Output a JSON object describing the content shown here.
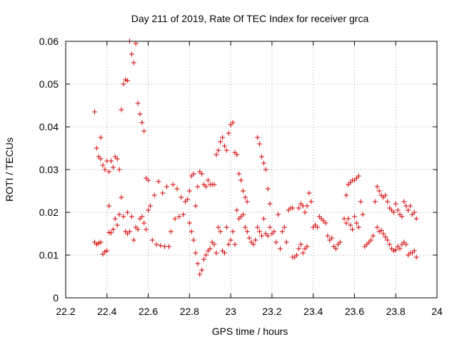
{
  "chart_data": {
    "type": "scatter",
    "title": "Day 211 of 2019, Rate Of TEC Index for receiver grca",
    "xlabel": "GPS time / hours",
    "ylabel": "ROTI / TECUs",
    "xlim": [
      22.2,
      24.0
    ],
    "ylim": [
      0,
      0.06
    ],
    "x_ticks": [
      "22.2",
      "22.4",
      "22.6",
      "22.8",
      "23",
      "23.2",
      "23.4",
      "23.6",
      "23.8",
      "24"
    ],
    "y_ticks": [
      "0",
      "0.01",
      "0.02",
      "0.03",
      "0.04",
      "0.05",
      "0.06"
    ],
    "grid": true,
    "marker": "plus",
    "color": "#d40000",
    "points": [
      [
        22.34,
        0.0435
      ],
      [
        22.35,
        0.035
      ],
      [
        22.36,
        0.033
      ],
      [
        22.37,
        0.0375
      ],
      [
        22.38,
        0.031
      ],
      [
        22.37,
        0.0325
      ],
      [
        22.39,
        0.03
      ],
      [
        22.4,
        0.032
      ],
      [
        22.41,
        0.0295
      ],
      [
        22.42,
        0.032
      ],
      [
        22.43,
        0.0305
      ],
      [
        22.44,
        0.033
      ],
      [
        22.45,
        0.0325
      ],
      [
        22.46,
        0.03
      ],
      [
        22.41,
        0.0215
      ],
      [
        22.34,
        0.013
      ],
      [
        22.35,
        0.0125
      ],
      [
        22.36,
        0.0128
      ],
      [
        22.37,
        0.013
      ],
      [
        22.38,
        0.0102
      ],
      [
        22.39,
        0.0108
      ],
      [
        22.4,
        0.011
      ],
      [
        22.41,
        0.0153
      ],
      [
        22.42,
        0.0152
      ],
      [
        22.43,
        0.016
      ],
      [
        22.44,
        0.0185
      ],
      [
        22.45,
        0.017
      ],
      [
        22.46,
        0.0195
      ],
      [
        22.47,
        0.0235
      ],
      [
        22.48,
        0.019
      ],
      [
        22.49,
        0.0155
      ],
      [
        22.5,
        0.015
      ],
      [
        22.5,
        0.02
      ],
      [
        22.51,
        0.0155
      ],
      [
        22.52,
        0.019
      ],
      [
        22.53,
        0.0135
      ],
      [
        22.54,
        0.0165
      ],
      [
        22.47,
        0.044
      ],
      [
        22.48,
        0.05
      ],
      [
        22.49,
        0.051
      ],
      [
        22.5,
        0.0508
      ],
      [
        22.51,
        0.06
      ],
      [
        22.52,
        0.057
      ],
      [
        22.53,
        0.055
      ],
      [
        22.54,
        0.0595
      ],
      [
        22.55,
        0.0455
      ],
      [
        22.56,
        0.043
      ],
      [
        22.57,
        0.041
      ],
      [
        22.58,
        0.039
      ],
      [
        22.59,
        0.028
      ],
      [
        22.6,
        0.0275
      ],
      [
        22.55,
        0.016
      ],
      [
        22.56,
        0.0185
      ],
      [
        22.57,
        0.019
      ],
      [
        22.58,
        0.0175
      ],
      [
        22.59,
        0.016
      ],
      [
        22.6,
        0.0205
      ],
      [
        22.61,
        0.0215
      ],
      [
        22.62,
        0.0135
      ],
      [
        22.63,
        0.024
      ],
      [
        22.64,
        0.0125
      ],
      [
        22.65,
        0.0272
      ],
      [
        22.66,
        0.0122
      ],
      [
        22.67,
        0.0245
      ],
      [
        22.68,
        0.012
      ],
      [
        22.69,
        0.026
      ],
      [
        22.7,
        0.012
      ],
      [
        22.71,
        0.0155
      ],
      [
        22.72,
        0.0265
      ],
      [
        22.73,
        0.0185
      ],
      [
        22.74,
        0.0255
      ],
      [
        22.75,
        0.019
      ],
      [
        22.76,
        0.0235
      ],
      [
        22.77,
        0.0195
      ],
      [
        22.78,
        0.0225
      ],
      [
        22.79,
        0.023
      ],
      [
        22.8,
        0.0175
      ],
      [
        22.81,
        0.0155
      ],
      [
        22.82,
        0.0135
      ],
      [
        22.83,
        0.0105
      ],
      [
        22.84,
        0.008
      ],
      [
        22.85,
        0.0055
      ],
      [
        22.86,
        0.0065
      ],
      [
        22.87,
        0.009
      ],
      [
        22.88,
        0.01
      ],
      [
        22.89,
        0.011
      ],
      [
        22.9,
        0.0115
      ],
      [
        22.91,
        0.013
      ],
      [
        22.92,
        0.0125
      ],
      [
        22.8,
        0.025
      ],
      [
        22.81,
        0.0285
      ],
      [
        22.82,
        0.029
      ],
      [
        22.83,
        0.0215
      ],
      [
        22.84,
        0.026
      ],
      [
        22.85,
        0.0295
      ],
      [
        22.86,
        0.029
      ],
      [
        22.87,
        0.0265
      ],
      [
        22.88,
        0.026
      ],
      [
        22.89,
        0.0275
      ],
      [
        22.9,
        0.0265
      ],
      [
        22.91,
        0.0265
      ],
      [
        22.92,
        0.0265
      ],
      [
        22.93,
        0.0335
      ],
      [
        22.94,
        0.0345
      ],
      [
        22.95,
        0.0365
      ],
      [
        22.96,
        0.0375
      ],
      [
        22.97,
        0.0355
      ],
      [
        22.98,
        0.0345
      ],
      [
        22.99,
        0.0385
      ],
      [
        23.0,
        0.0405
      ],
      [
        23.01,
        0.041
      ],
      [
        23.02,
        0.034
      ],
      [
        23.03,
        0.0335
      ],
      [
        23.04,
        0.029
      ],
      [
        23.05,
        0.0275
      ],
      [
        23.06,
        0.025
      ],
      [
        23.07,
        0.0235
      ],
      [
        23.08,
        0.0225
      ],
      [
        22.93,
        0.0105
      ],
      [
        22.94,
        0.0165
      ],
      [
        22.95,
        0.0155
      ],
      [
        22.96,
        0.011
      ],
      [
        22.97,
        0.0105
      ],
      [
        22.98,
        0.0165
      ],
      [
        22.99,
        0.0125
      ],
      [
        23.0,
        0.0135
      ],
      [
        23.01,
        0.0155
      ],
      [
        23.02,
        0.0125
      ],
      [
        23.03,
        0.0205
      ],
      [
        23.04,
        0.0185
      ],
      [
        23.05,
        0.019
      ],
      [
        23.06,
        0.0195
      ],
      [
        23.07,
        0.0165
      ],
      [
        23.08,
        0.0155
      ],
      [
        23.09,
        0.014
      ],
      [
        23.1,
        0.013
      ],
      [
        23.11,
        0.0125
      ],
      [
        23.12,
        0.0135
      ],
      [
        23.13,
        0.0375
      ],
      [
        23.14,
        0.036
      ],
      [
        23.15,
        0.033
      ],
      [
        23.16,
        0.0315
      ],
      [
        23.17,
        0.03
      ],
      [
        23.18,
        0.0255
      ],
      [
        23.19,
        0.022
      ],
      [
        23.13,
        0.0165
      ],
      [
        23.14,
        0.0155
      ],
      [
        23.15,
        0.0145
      ],
      [
        23.16,
        0.0185
      ],
      [
        23.17,
        0.015
      ],
      [
        23.18,
        0.0145
      ],
      [
        23.19,
        0.0165
      ],
      [
        23.2,
        0.015
      ],
      [
        23.21,
        0.0155
      ],
      [
        23.22,
        0.013
      ],
      [
        23.23,
        0.0195
      ],
      [
        23.24,
        0.0115
      ],
      [
        23.25,
        0.0155
      ],
      [
        23.26,
        0.0165
      ],
      [
        23.27,
        0.013
      ],
      [
        23.28,
        0.0205
      ],
      [
        23.29,
        0.021
      ],
      [
        23.3,
        0.021
      ],
      [
        23.3,
        0.0095
      ],
      [
        23.31,
        0.0095
      ],
      [
        23.32,
        0.01
      ],
      [
        23.33,
        0.0115
      ],
      [
        23.34,
        0.0125
      ],
      [
        23.35,
        0.0105
      ],
      [
        23.36,
        0.0115
      ],
      [
        23.37,
        0.012
      ],
      [
        23.33,
        0.021
      ],
      [
        23.34,
        0.022
      ],
      [
        23.35,
        0.0215
      ],
      [
        23.36,
        0.02
      ],
      [
        23.37,
        0.0215
      ],
      [
        23.38,
        0.0245
      ],
      [
        23.39,
        0.0225
      ],
      [
        23.4,
        0.0165
      ],
      [
        23.41,
        0.017
      ],
      [
        23.42,
        0.0165
      ],
      [
        23.43,
        0.019
      ],
      [
        23.44,
        0.0185
      ],
      [
        23.45,
        0.018
      ],
      [
        23.46,
        0.0175
      ],
      [
        23.47,
        0.0145
      ],
      [
        23.48,
        0.0135
      ],
      [
        23.49,
        0.014
      ],
      [
        23.5,
        0.012
      ],
      [
        23.51,
        0.0115
      ],
      [
        23.52,
        0.0125
      ],
      [
        23.53,
        0.013
      ],
      [
        23.55,
        0.0185
      ],
      [
        23.56,
        0.024
      ],
      [
        23.57,
        0.0265
      ],
      [
        23.58,
        0.027
      ],
      [
        23.59,
        0.0275
      ],
      [
        23.6,
        0.0275
      ],
      [
        23.61,
        0.028
      ],
      [
        23.62,
        0.0285
      ],
      [
        23.56,
        0.0175
      ],
      [
        23.57,
        0.0185
      ],
      [
        23.58,
        0.017
      ],
      [
        23.59,
        0.016
      ],
      [
        23.6,
        0.019
      ],
      [
        23.61,
        0.0175
      ],
      [
        23.62,
        0.0165
      ],
      [
        23.63,
        0.0225
      ],
      [
        23.64,
        0.0195
      ],
      [
        23.65,
        0.012
      ],
      [
        23.66,
        0.0125
      ],
      [
        23.67,
        0.013
      ],
      [
        23.68,
        0.0135
      ],
      [
        23.69,
        0.0145
      ],
      [
        23.7,
        0.0225
      ],
      [
        23.71,
        0.026
      ],
      [
        23.72,
        0.025
      ],
      [
        23.73,
        0.024
      ],
      [
        23.74,
        0.0235
      ],
      [
        23.75,
        0.024
      ],
      [
        23.76,
        0.0225
      ],
      [
        23.77,
        0.021
      ],
      [
        23.78,
        0.0205
      ],
      [
        23.79,
        0.02
      ],
      [
        23.8,
        0.022
      ],
      [
        23.81,
        0.0205
      ],
      [
        23.82,
        0.0195
      ],
      [
        23.83,
        0.019
      ],
      [
        23.84,
        0.0225
      ],
      [
        23.85,
        0.0215
      ],
      [
        23.86,
        0.0205
      ],
      [
        23.87,
        0.0215
      ],
      [
        23.88,
        0.0195
      ],
      [
        23.89,
        0.02
      ],
      [
        23.9,
        0.0185
      ],
      [
        23.71,
        0.0165
      ],
      [
        23.72,
        0.0155
      ],
      [
        23.73,
        0.0158
      ],
      [
        23.74,
        0.015
      ],
      [
        23.75,
        0.0142
      ],
      [
        23.76,
        0.0135
      ],
      [
        23.77,
        0.0125
      ],
      [
        23.78,
        0.0115
      ],
      [
        23.79,
        0.011
      ],
      [
        23.8,
        0.0112
      ],
      [
        23.81,
        0.012
      ],
      [
        23.82,
        0.0115
      ],
      [
        23.83,
        0.0125
      ],
      [
        23.84,
        0.013
      ],
      [
        23.85,
        0.0125
      ],
      [
        23.86,
        0.01
      ],
      [
        23.87,
        0.0105
      ],
      [
        23.88,
        0.0105
      ],
      [
        23.89,
        0.011
      ],
      [
        23.9,
        0.0095
      ]
    ]
  }
}
